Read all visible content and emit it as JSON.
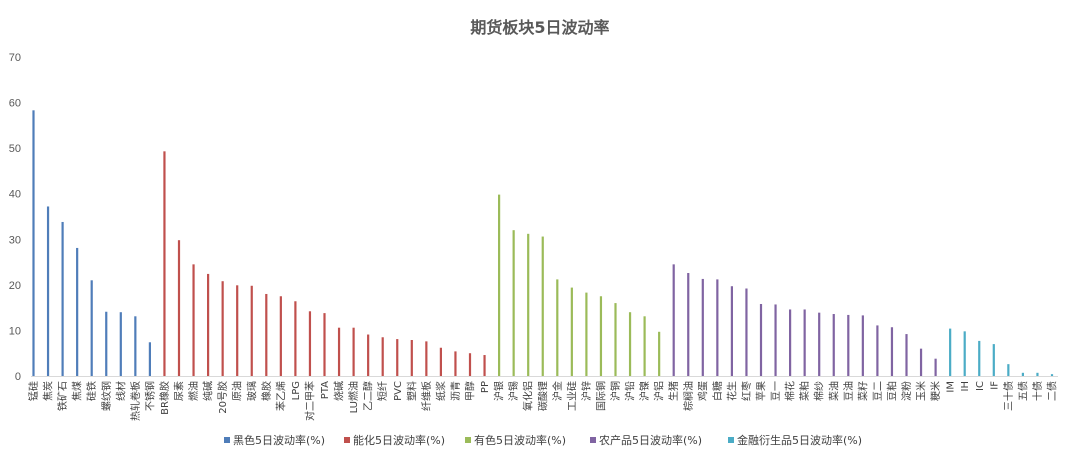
{
  "chart_data": {
    "type": "bar",
    "title": "期货板块5日波动率",
    "xlabel": "",
    "ylabel": "",
    "ylim": [
      0,
      70
    ],
    "yticks": [
      0,
      10,
      20,
      30,
      40,
      50,
      60,
      70
    ],
    "grid": false,
    "legend_position": "bottom",
    "series": [
      {
        "name": "黑色5日波动率(%)",
        "color": "#4F7DB9",
        "categories": [
          "锰硅",
          "焦炭",
          "铁矿石",
          "焦煤",
          "硅铁",
          "螺纹钢",
          "线材",
          "热轧卷板",
          "不锈钢"
        ],
        "values": [
          58.3,
          37.2,
          33.8,
          28.1,
          21.0,
          14.1,
          14.0,
          13.1,
          7.4
        ]
      },
      {
        "name": "能化5日波动率(%)",
        "color": "#C0504D",
        "categories": [
          "BR橡胶",
          "尿素",
          "燃油",
          "纯碱",
          "20号胶",
          "原油",
          "玻璃",
          "橡胶",
          "苯乙烯",
          "LPG",
          "对二甲苯",
          "PTA",
          "烧碱",
          "LU燃油",
          "乙二醇",
          "短纤",
          "PVC",
          "塑料",
          "纤维板",
          "纸浆",
          "沥青",
          "甲醇",
          "PP"
        ],
        "values": [
          49.3,
          29.8,
          24.5,
          22.4,
          20.8,
          19.9,
          19.8,
          18.0,
          17.5,
          16.4,
          14.2,
          13.8,
          10.6,
          10.6,
          9.1,
          8.5,
          8.1,
          7.9,
          7.6,
          6.2,
          5.4,
          5.0,
          4.6
        ]
      },
      {
        "name": "有色5日波动率(%)",
        "color": "#9BBB59",
        "categories": [
          "沪银",
          "沪锡",
          "氧化铝",
          "碳酸锂",
          "沪金",
          "工业硅",
          "沪锌",
          "国际铜",
          "沪铜",
          "沪铅",
          "沪镍",
          "沪铝"
        ],
        "values": [
          39.8,
          32.0,
          31.2,
          30.6,
          21.2,
          19.4,
          18.3,
          17.5,
          16.0,
          14.0,
          13.1,
          9.7
        ]
      },
      {
        "name": "农产品5日波动率(%)",
        "color": "#8064A2",
        "categories": [
          "生猪",
          "棕榈油",
          "鸡蛋",
          "白糖",
          "花生",
          "红枣",
          "苹果",
          "豆一",
          "棉花",
          "菜粕",
          "棉纱",
          "菜油",
          "豆油",
          "菜籽",
          "豆二",
          "豆粕",
          "淀粉",
          "玉米",
          "粳米"
        ],
        "values": [
          24.5,
          22.6,
          21.3,
          21.2,
          19.7,
          19.2,
          15.8,
          15.7,
          14.6,
          14.6,
          13.9,
          13.6,
          13.4,
          13.3,
          11.1,
          10.7,
          9.2,
          6.0,
          3.8
        ]
      },
      {
        "name": "金融衍生品5日波动率(%)",
        "color": "#4BACC6",
        "categories": [
          "IM",
          "IH",
          "IC",
          "IF",
          "三十债",
          "五债",
          "十债",
          "二债"
        ],
        "values": [
          10.4,
          9.8,
          7.7,
          7.0,
          2.6,
          0.7,
          0.7,
          0.4
        ]
      }
    ]
  }
}
